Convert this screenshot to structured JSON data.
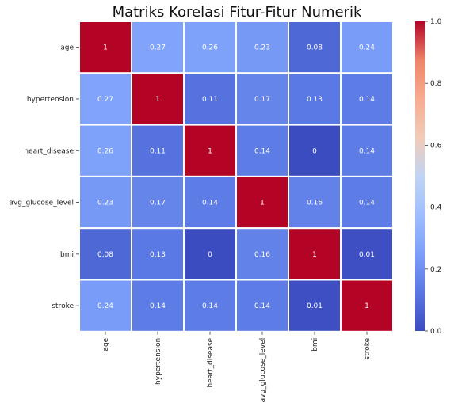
{
  "chart_data": {
    "type": "heatmap",
    "title": "Matriks Korelasi Fitur-Fitur Numerik",
    "variables": [
      "age",
      "hypertension",
      "heart_disease",
      "avg_glucose_level",
      "bmi",
      "stroke"
    ],
    "matrix": [
      [
        1,
        0.27,
        0.26,
        0.23,
        0.08,
        0.24
      ],
      [
        0.27,
        1,
        0.11,
        0.17,
        0.13,
        0.14
      ],
      [
        0.26,
        0.11,
        1,
        0.14,
        0,
        0.14
      ],
      [
        0.23,
        0.17,
        0.14,
        1,
        0.16,
        0.14
      ],
      [
        0.08,
        0.13,
        0,
        0.16,
        1,
        0.01
      ],
      [
        0.24,
        0.14,
        0.14,
        0.14,
        0.01,
        1
      ]
    ],
    "colormap": "coolwarm",
    "colorbar": {
      "range": [
        0,
        1
      ],
      "ticks": [
        0,
        0.2,
        0.4,
        0.6,
        0.8,
        1
      ],
      "tick_labels": [
        "0.0",
        "0.2",
        "0.4",
        "0.6",
        "0.8",
        "1.0"
      ]
    },
    "cell_border_color": "#ffffff"
  }
}
